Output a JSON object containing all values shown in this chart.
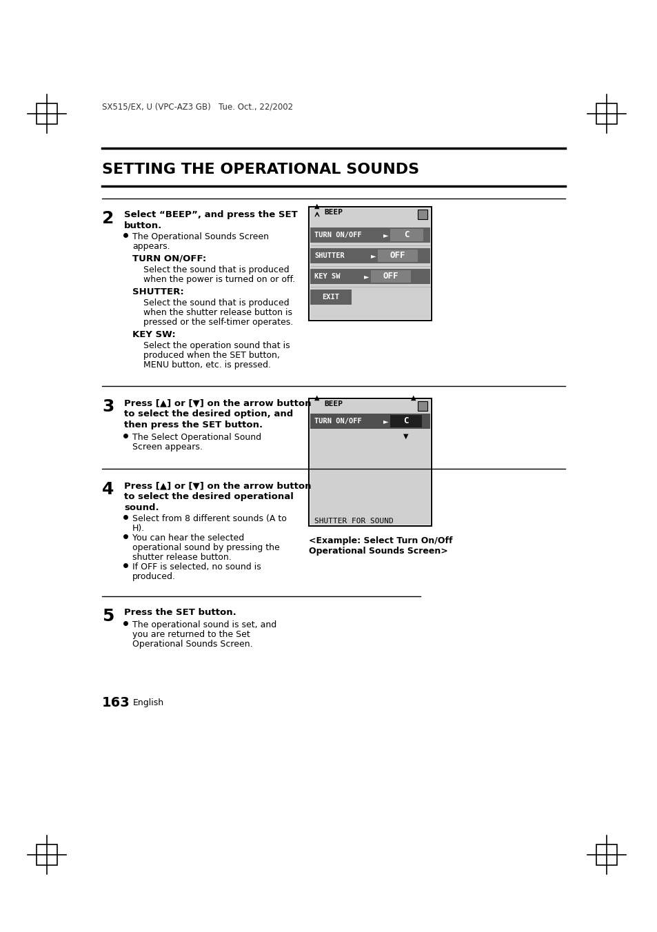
{
  "page_header": "SX515/EX, U (VPC-AZ3 GB)   Tue. Oct., 22/2002",
  "title": "SETTING THE OPERATIONAL SOUNDS",
  "section2_step": "2",
  "section2_bold": "Select “BEEP”, and press the SET\nbutton.",
  "section2_bullet1": "The Operational Sounds Screen\nappears.",
  "section2_label1": "TURN ON/OFF:",
  "section2_text1": "Select the sound that is produced\nwhen the power is turned on or off.",
  "section2_label2": "SHUTTER:",
  "section2_text2": "Select the sound that is produced\nwhen the shutter release button is\npressed or the self-timer operates.",
  "section2_label3": "KEY SW:",
  "section2_text3": "Select the operation sound that is\nproduced when the SET button,\nMENU button, etc. is pressed.",
  "section3_step": "3",
  "section3_bold": "Press [▲] or [▼] on the arrow button\nto select the desired option, and\nthen press the SET button.",
  "section3_bullet1": "The Select Operational Sound\nScreen appears.",
  "section4_step": "4",
  "section4_bold": "Press [▲] or [▼] on the arrow button\nto select the desired operational\nsound.",
  "section4_bullet1": "Select from 8 different sounds (A to\nH).",
  "section4_bullet2": "You can hear the selected\noperational sound by pressing the\nshutter release button.",
  "section4_bullet3": "If OFF is selected, no sound is\nproduced.",
  "section5_step": "5",
  "section5_bold": "Press the SET button.",
  "section5_bullet1": "The operational sound is set, and\nyou are returned to the Set\nOperational Sounds Screen.",
  "page_number": "163",
  "page_number_suffix": "English",
  "caption": "<Example: Select Turn On/Off\nOperational Sounds Screen>",
  "bg_color": "#ffffff",
  "text_color": "#000000",
  "screen_bg": "#c8c8c8",
  "screen_dark": "#505050",
  "screen_highlight": "#000080",
  "screen_white": "#ffffff"
}
